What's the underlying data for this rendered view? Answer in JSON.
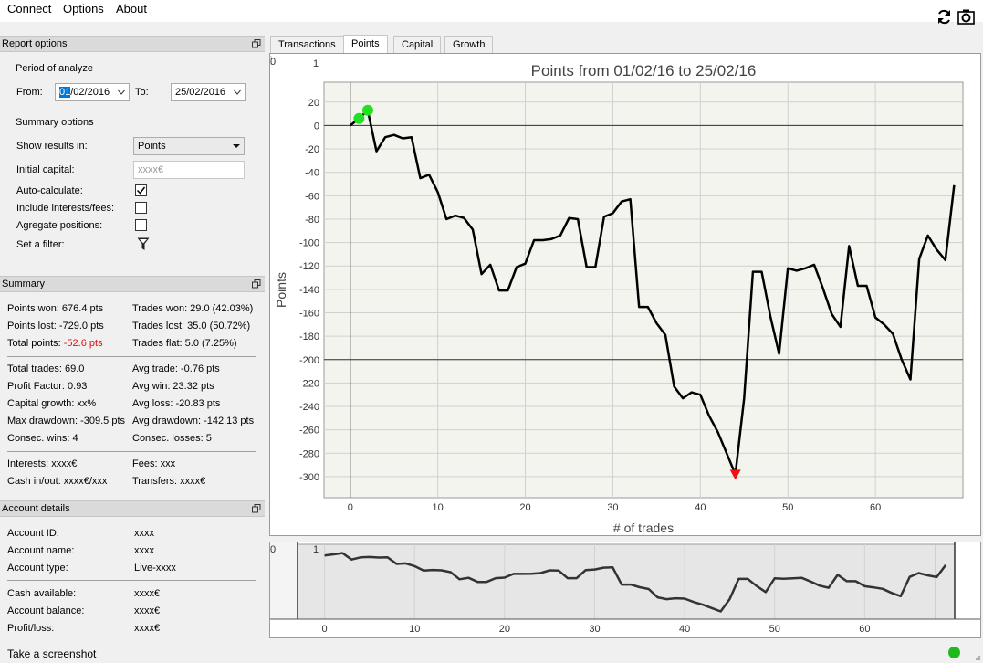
{
  "menu": {
    "connect": "Connect",
    "options": "Options",
    "about": "About"
  },
  "toolbar": {
    "refresh_icon": "refresh-icon",
    "camera_icon": "camera-icon"
  },
  "report_options": {
    "header": "Report options",
    "period_label": "Period of analyze",
    "from_label": "From:",
    "from_selected": "01",
    "from_rest": "/02/2016",
    "to_label": "To:",
    "to_value": "25/02/2016",
    "summary_label": "Summary options",
    "show_results_label": "Show results in:",
    "show_results_value": "Points",
    "initial_capital_label": "Initial capital:",
    "initial_capital_placeholder": "xxxx€",
    "auto_calc_label": "Auto-calculate:",
    "auto_calc_checked": true,
    "include_fees_label": "Include interests/fees:",
    "include_fees_checked": false,
    "aggregate_label": "Agregate positions:",
    "aggregate_checked": false,
    "filter_label": "Set a filter:"
  },
  "summary": {
    "header": "Summary",
    "points_won": "Points won: 676.4 pts",
    "trades_won": "Trades won: 29.0 (42.03%)",
    "points_lost": "Points lost: -729.0 pts",
    "trades_lost": "Trades lost: 35.0 (50.72%)",
    "total_points_label": "Total points: ",
    "total_points_value": "-52.6 pts",
    "trades_flat": "Trades flat: 5.0 (7.25%)",
    "total_trades": "Total trades: 69.0",
    "avg_trade": "Avg trade: -0.76 pts",
    "profit_factor": "Profit Factor: 0.93",
    "avg_win": "Avg win: 23.32 pts",
    "capital_growth": "Capital growth: xx%",
    "avg_loss": "Avg loss: -20.83 pts",
    "max_drawdown": "Max drawdown: -309.5 pts",
    "avg_drawdown": "Avg drawdown: -142.13 pts",
    "consec_wins": "Consec. wins: 4",
    "consec_losses": "Consec. losses: 5",
    "interests": "Interests: xxxx€",
    "fees": "Fees: xxx",
    "cash_inout": "Cash in/out: xxxx€/xxx",
    "transfers": "Transfers: xxxx€"
  },
  "account": {
    "header": "Account details",
    "rows": [
      {
        "label": "Account ID:",
        "value": "xxxx"
      },
      {
        "label": "Account name:",
        "value": "xxxx"
      },
      {
        "label": "Account type:",
        "value": "Live-xxxx"
      },
      {
        "label": "Cash available:",
        "value": "xxxx€"
      },
      {
        "label": "Account balance:",
        "value": "xxxx€"
      },
      {
        "label": "Profit/loss:",
        "value": "xxxx€"
      }
    ]
  },
  "tabs": [
    {
      "label": "Transactions",
      "active": false
    },
    {
      "label": "Points",
      "active": true
    },
    {
      "label": "Capital",
      "active": false
    },
    {
      "label": "Growth",
      "active": false
    }
  ],
  "status": {
    "text": "Take a screenshot",
    "dot_color": "#1fb81f"
  },
  "colors": {
    "negative": "#e01010",
    "highlight": "#0078d7",
    "win_marker": "#22e022",
    "loss_marker": "#ee1111"
  },
  "chart_data": [
    {
      "type": "line",
      "title": "Points from 01/02/16 to 25/02/16",
      "xlabel": "# of trades",
      "ylabel": "Points",
      "corner_labels": [
        "0",
        "1"
      ],
      "xlim": [
        -3,
        70
      ],
      "ylim": [
        -318,
        37
      ],
      "x_ticks": [
        0,
        10,
        20,
        30,
        40,
        50,
        60
      ],
      "y_ticks": [
        20,
        0,
        -20,
        -40,
        -60,
        -80,
        -100,
        -120,
        -140,
        -160,
        -180,
        -200,
        -220,
        -240,
        -260,
        -280,
        -300
      ],
      "grid": true,
      "x": [
        0,
        1,
        2,
        3,
        4,
        5,
        6,
        7,
        8,
        9,
        10,
        11,
        12,
        13,
        14,
        15,
        16,
        17,
        18,
        19,
        20,
        21,
        22,
        23,
        24,
        25,
        26,
        27,
        28,
        29,
        30,
        31,
        32,
        33,
        34,
        35,
        36,
        37,
        38,
        39,
        40,
        41,
        42,
        43,
        44,
        45,
        46,
        47,
        48,
        49,
        50,
        51,
        52,
        53,
        54,
        55,
        56,
        57,
        58,
        59,
        60,
        61,
        62,
        63,
        64,
        65,
        66,
        67,
        68,
        69
      ],
      "y": [
        0,
        6,
        13,
        -22,
        -10,
        -8,
        -11,
        -10,
        -45,
        -42,
        -57,
        -80,
        -77,
        -79,
        -89,
        -127,
        -119,
        -141,
        -141,
        -121,
        -118,
        -98,
        -98,
        -97,
        -94,
        -79,
        -80,
        -121,
        -121,
        -78,
        -75,
        -65,
        -63,
        -155,
        -155,
        -169,
        -179,
        -223,
        -233,
        -228,
        -230,
        -248,
        -262,
        -280,
        -298,
        -233,
        -125,
        -125,
        -163,
        -195,
        -122,
        -124,
        -122,
        -119,
        -139,
        -161,
        -172,
        -103,
        -137,
        -137,
        -164,
        -170,
        -178,
        -200,
        -217,
        -114,
        -94,
        -106,
        -115,
        -51
      ],
      "markers": [
        {
          "x": 1,
          "y": 6,
          "kind": "win"
        },
        {
          "x": 2,
          "y": 13,
          "kind": "win"
        },
        {
          "x": 44,
          "y": -298,
          "kind": "drawdown"
        }
      ]
    },
    {
      "type": "line",
      "title": "",
      "corner_labels": [
        "0",
        "1"
      ],
      "xlim": [
        -3,
        70
      ],
      "x_ticks": [
        0,
        10,
        20,
        30,
        40,
        50,
        60
      ],
      "note": "overview navigator of the same series"
    }
  ]
}
